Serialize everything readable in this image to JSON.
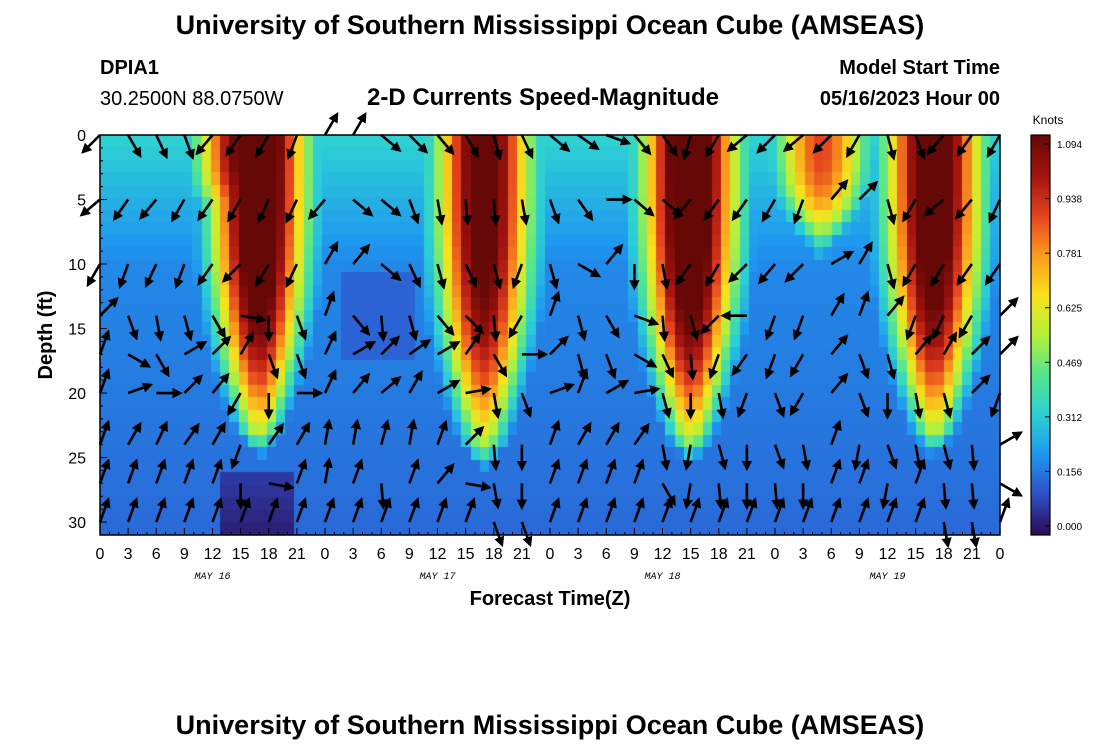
{
  "header": {
    "title": "University of Southern Mississippi Ocean Cube (AMSEAS)",
    "station_id": "DPIA1",
    "location": "30.2500N  88.0750W",
    "subtitle": "2-D Currents Speed-Magnitude",
    "model_start_label": "Model Start Time",
    "model_start_value": "05/16/2023 Hour 00"
  },
  "footer": {
    "title": "University of Southern Mississippi Ocean Cube (AMSEAS)"
  },
  "chart_data": {
    "type": "heatmap",
    "title": "2-D Currents Speed-Magnitude",
    "xlabel": "Forecast Time(Z)",
    "ylabel": "Depth (ft)",
    "x_ticks": [
      "0",
      "3",
      "6",
      "9",
      "12",
      "15",
      "18",
      "21",
      "0",
      "3",
      "6",
      "9",
      "12",
      "15",
      "18",
      "21",
      "0",
      "3",
      "6",
      "9",
      "12",
      "15",
      "18",
      "21",
      "0",
      "3",
      "6",
      "9",
      "12",
      "15",
      "18",
      "21",
      "0"
    ],
    "day_labels": [
      "MAY 16",
      "MAY 17",
      "MAY 18",
      "MAY 19"
    ],
    "xlim_hours": [
      0,
      96
    ],
    "y_ticks": [
      "0",
      "5",
      "10",
      "15",
      "20",
      "25",
      "30"
    ],
    "ylim_ft": [
      0,
      31
    ],
    "colorbar": {
      "label": "Knots",
      "ticks": [
        "1.094",
        "0.938",
        "0.781",
        "0.625",
        "0.469",
        "0.312",
        "0.156",
        "0.000"
      ],
      "range": [
        0,
        1.094
      ],
      "palette": [
        "#2a0b52",
        "#2f4fc9",
        "#1f97f0",
        "#2ccfd4",
        "#55e68e",
        "#b6f03a",
        "#f7e21c",
        "#fb9b1d",
        "#e4421e",
        "#a3130f",
        "#660806"
      ]
    },
    "speed_pulses": [
      {
        "center_hour": 17,
        "peak_knots": 1.094,
        "bottom_ft": 23
      },
      {
        "center_hour": 15.5,
        "peak_knots": 0.95,
        "bottom_ft": 8
      },
      {
        "center_hour": 41,
        "peak_knots": 1.0,
        "bottom_ft": 24
      },
      {
        "center_hour": 63,
        "peak_knots": 1.09,
        "bottom_ft": 23.5
      },
      {
        "center_hour": 77,
        "peak_knots": 0.7,
        "bottom_ft": 8
      },
      {
        "center_hour": 89,
        "peak_knots": 1.05,
        "bottom_ft": 23
      }
    ],
    "vector_depths_ft": [
      0,
      5,
      10,
      14,
      17,
      20,
      24,
      27,
      30
    ],
    "vector_columns": 33,
    "vector_direction_deg": [
      [
        225,
        150,
        155,
        160,
        220,
        215,
        210,
        200,
        30,
        30,
        130,
        135,
        140,
        150,
        165,
        155,
        130,
        125,
        110,
        140,
        145,
        195,
        210,
        230,
        225,
        230,
        225,
        210,
        165,
        160,
        220,
        215,
        210
      ],
      [
        230,
        215,
        220,
        210,
        215,
        210,
        205,
        205,
        220,
        130,
        130,
        160,
        170,
        175,
        175,
        170,
        160,
        145,
        90,
        130,
        130,
        220,
        215,
        215,
        210,
        200,
        40,
        45,
        165,
        210,
        230,
        220,
        205
      ],
      [
        210,
        200,
        205,
        200,
        215,
        225,
        210,
        205,
        30,
        40,
        130,
        155,
        165,
        155,
        165,
        200,
        165,
        120,
        40,
        180,
        170,
        215,
        210,
        225,
        220,
        225,
        60,
        30,
        165,
        210,
        210,
        215,
        215
      ],
      [
        45,
        160,
        170,
        165,
        150,
        100,
        180,
        160,
        20,
        140,
        175,
        165,
        140,
        135,
        175,
        210,
        20,
        165,
        150,
        110,
        175,
        165,
        225,
        270,
        200,
        200,
        30,
        20,
        40,
        200,
        205,
        210,
        45
      ],
      [
        20,
        120,
        150,
        60,
        45,
        30,
        160,
        160,
        25,
        60,
        45,
        55,
        60,
        35,
        150,
        90,
        45,
        165,
        160,
        120,
        155,
        175,
        200,
        215,
        200,
        210,
        40,
        160,
        165,
        40,
        30,
        45,
        45
      ],
      [
        20,
        70,
        90,
        45,
        40,
        210,
        180,
        90,
        25,
        40,
        50,
        30,
        60,
        80,
        170,
        160,
        70,
        20,
        60,
        80,
        165,
        180,
        170,
        200,
        160,
        210,
        40,
        160,
        180,
        170,
        165,
        45,
        200
      ],
      [
        20,
        30,
        25,
        35,
        30,
        200,
        35,
        30,
        10,
        10,
        15,
        10,
        20,
        45,
        175,
        180,
        20,
        30,
        30,
        35,
        170,
        190,
        165,
        180,
        160,
        170,
        20,
        190,
        160,
        170,
        165,
        175,
        60
      ],
      [
        20,
        20,
        20,
        20,
        20,
        180,
        100,
        20,
        10,
        20,
        175,
        20,
        40,
        100,
        170,
        180,
        20,
        20,
        20,
        20,
        150,
        190,
        175,
        180,
        175,
        180,
        20,
        20,
        190,
        20,
        175,
        175,
        120
      ],
      [
        20,
        20,
        20,
        20,
        20,
        20,
        20,
        20,
        20,
        20,
        20,
        20,
        20,
        20,
        160,
        160,
        20,
        20,
        20,
        20,
        20,
        20,
        20,
        20,
        20,
        20,
        20,
        20,
        20,
        20,
        170,
        170,
        20
      ]
    ]
  }
}
